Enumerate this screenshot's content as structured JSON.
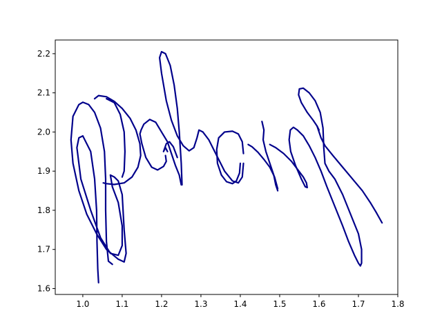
{
  "chart_data": {
    "type": "line",
    "title": "",
    "xlabel": "",
    "ylabel": "",
    "xlim": [
      0.93,
      1.8
    ],
    "ylim": [
      1.585,
      2.235
    ],
    "xticks": [
      1.0,
      1.1,
      1.2,
      1.3,
      1.4,
      1.5,
      1.6,
      1.7,
      1.8
    ],
    "xtick_labels": [
      "1.0",
      "1.1",
      "1.2",
      "1.3",
      "1.4",
      "1.5",
      "1.6",
      "1.7",
      "1.8"
    ],
    "yticks": [
      1.6,
      1.7,
      1.8,
      1.9,
      2.0,
      2.1,
      2.2
    ],
    "ytick_labels": [
      "1.6",
      "1.7",
      "1.8",
      "1.9",
      "2.0",
      "2.1",
      "2.2"
    ],
    "grid": false,
    "line_color": "#00008b",
    "series": [
      {
        "points": [
          [
            1.03,
            2.085
          ],
          [
            1.04,
            2.093
          ],
          [
            1.06,
            2.09
          ],
          [
            1.08,
            2.078
          ],
          [
            1.1,
            2.06
          ],
          [
            1.12,
            2.035
          ],
          [
            1.135,
            2.005
          ],
          [
            1.145,
            1.97
          ],
          [
            1.147,
            1.94
          ],
          [
            1.14,
            1.91
          ],
          [
            1.125,
            1.885
          ],
          [
            1.105,
            1.87
          ],
          [
            1.08,
            1.866
          ],
          [
            1.06,
            1.868
          ],
          [
            1.052,
            1.87
          ]
        ]
      },
      {
        "points": [
          [
            1.04,
            1.615
          ],
          [
            1.038,
            1.65
          ],
          [
            1.036,
            1.72
          ],
          [
            1.035,
            1.8
          ],
          [
            1.03,
            1.88
          ],
          [
            1.02,
            1.95
          ],
          [
            1.0,
            1.99
          ],
          [
            0.99,
            1.985
          ],
          [
            0.985,
            1.96
          ],
          [
            0.995,
            1.88
          ],
          [
            1.02,
            1.8
          ],
          [
            1.045,
            1.73
          ],
          [
            1.07,
            1.69
          ],
          [
            1.09,
            1.685
          ],
          [
            1.1,
            1.71
          ],
          [
            1.1,
            1.76
          ],
          [
            1.09,
            1.82
          ],
          [
            1.075,
            1.86
          ],
          [
            1.07,
            1.89
          ],
          [
            1.08,
            1.885
          ],
          [
            1.09,
            1.875
          ],
          [
            1.1,
            1.84
          ],
          [
            1.105,
            1.75
          ],
          [
            1.11,
            1.69
          ],
          [
            1.105,
            1.668
          ],
          [
            1.09,
            1.675
          ],
          [
            1.06,
            1.7
          ],
          [
            1.035,
            1.74
          ],
          [
            1.01,
            1.79
          ],
          [
            0.99,
            1.85
          ],
          [
            0.975,
            1.92
          ],
          [
            0.97,
            1.98
          ],
          [
            0.975,
            2.04
          ],
          [
            0.99,
            2.07
          ],
          [
            1.0,
            2.076
          ],
          [
            1.015,
            2.07
          ],
          [
            1.03,
            2.05
          ],
          [
            1.045,
            2.01
          ],
          [
            1.055,
            1.95
          ],
          [
            1.058,
            1.88
          ],
          [
            1.058,
            1.8
          ],
          [
            1.06,
            1.72
          ],
          [
            1.065,
            1.67
          ],
          [
            1.075,
            1.662
          ]
        ]
      },
      {
        "points": [
          [
            1.06,
            2.085
          ],
          [
            1.08,
            2.075
          ],
          [
            1.095,
            2.045
          ],
          [
            1.105,
            2.0
          ],
          [
            1.107,
            1.95
          ],
          [
            1.105,
            1.9
          ],
          [
            1.1,
            1.885
          ]
        ]
      },
      {
        "points": [
          [
            1.21,
            1.94
          ],
          [
            1.212,
            1.925
          ],
          [
            1.205,
            1.912
          ],
          [
            1.19,
            1.903
          ],
          [
            1.175,
            1.91
          ],
          [
            1.16,
            1.935
          ],
          [
            1.15,
            1.97
          ],
          [
            1.145,
            1.995
          ],
          [
            1.148,
            2.005
          ],
          [
            1.155,
            2.02
          ],
          [
            1.17,
            2.032
          ],
          [
            1.185,
            2.025
          ],
          [
            1.2,
            2.0
          ],
          [
            1.215,
            1.975
          ],
          [
            1.225,
            1.945
          ],
          [
            1.235,
            1.915
          ],
          [
            1.245,
            1.89
          ],
          [
            1.25,
            1.865
          ]
        ]
      },
      {
        "points": [
          [
            1.215,
            1.95
          ],
          [
            1.21,
            1.96
          ],
          [
            1.205,
            1.95
          ],
          [
            1.212,
            1.97
          ],
          [
            1.22,
            1.975
          ],
          [
            1.23,
            1.962
          ],
          [
            1.24,
            1.935
          ]
        ]
      },
      {
        "points": [
          [
            1.252,
            1.865
          ],
          [
            1.25,
            1.92
          ],
          [
            1.245,
            2.0
          ],
          [
            1.24,
            2.06
          ],
          [
            1.232,
            2.12
          ],
          [
            1.222,
            2.17
          ],
          [
            1.21,
            2.2
          ],
          [
            1.2,
            2.205
          ],
          [
            1.195,
            2.19
          ],
          [
            1.2,
            2.15
          ],
          [
            1.212,
            2.08
          ],
          [
            1.225,
            2.03
          ],
          [
            1.24,
            1.99
          ],
          [
            1.255,
            1.965
          ],
          [
            1.27,
            1.952
          ],
          [
            1.282,
            1.96
          ],
          [
            1.29,
            1.985
          ],
          [
            1.295,
            2.005
          ],
          [
            1.305,
            2.0
          ],
          [
            1.32,
            1.98
          ],
          [
            1.34,
            1.94
          ],
          [
            1.36,
            1.9
          ],
          [
            1.38,
            1.875
          ],
          [
            1.395,
            1.87
          ],
          [
            1.405,
            1.885
          ],
          [
            1.408,
            1.92
          ]
        ]
      },
      {
        "points": [
          [
            1.408,
            1.945
          ],
          [
            1.405,
            1.975
          ],
          [
            1.395,
            1.995
          ],
          [
            1.38,
            2.002
          ],
          [
            1.36,
            2.0
          ],
          [
            1.345,
            1.985
          ],
          [
            1.34,
            1.955
          ],
          [
            1.342,
            1.92
          ],
          [
            1.352,
            1.89
          ],
          [
            1.365,
            1.873
          ],
          [
            1.38,
            1.868
          ],
          [
            1.39,
            1.875
          ],
          [
            1.398,
            1.895
          ],
          [
            1.4,
            1.92
          ]
        ]
      },
      {
        "points": [
          [
            1.455,
            2.027
          ],
          [
            1.46,
            2.005
          ],
          [
            1.458,
            1.98
          ],
          [
            1.465,
            1.95
          ],
          [
            1.475,
            1.92
          ],
          [
            1.485,
            1.89
          ],
          [
            1.49,
            1.865
          ],
          [
            1.495,
            1.85
          ]
        ]
      },
      {
        "points": [
          [
            1.42,
            1.968
          ],
          [
            1.43,
            1.962
          ],
          [
            1.445,
            1.948
          ],
          [
            1.46,
            1.93
          ],
          [
            1.475,
            1.91
          ],
          [
            1.487,
            1.885
          ],
          [
            1.495,
            1.855
          ]
        ]
      },
      {
        "points": [
          [
            1.475,
            1.968
          ],
          [
            1.49,
            1.96
          ],
          [
            1.51,
            1.945
          ],
          [
            1.53,
            1.925
          ],
          [
            1.545,
            1.905
          ],
          [
            1.56,
            1.885
          ],
          [
            1.568,
            1.87
          ],
          [
            1.57,
            1.858
          ],
          [
            1.565,
            1.86
          ],
          [
            1.555,
            1.88
          ],
          [
            1.54,
            1.915
          ],
          [
            1.528,
            1.95
          ],
          [
            1.524,
            1.98
          ],
          [
            1.527,
            2.005
          ],
          [
            1.535,
            2.012
          ],
          [
            1.545,
            2.005
          ],
          [
            1.56,
            1.99
          ],
          [
            1.575,
            1.965
          ],
          [
            1.59,
            1.935
          ],
          [
            1.605,
            1.9
          ],
          [
            1.62,
            1.86
          ],
          [
            1.64,
            1.81
          ],
          [
            1.66,
            1.76
          ],
          [
            1.675,
            1.72
          ],
          [
            1.69,
            1.685
          ],
          [
            1.7,
            1.665
          ],
          [
            1.705,
            1.658
          ],
          [
            1.708,
            1.665
          ],
          [
            1.708,
            1.7
          ],
          [
            1.7,
            1.74
          ],
          [
            1.68,
            1.79
          ],
          [
            1.66,
            1.84
          ],
          [
            1.64,
            1.88
          ],
          [
            1.625,
            1.9
          ],
          [
            1.615,
            1.92
          ],
          [
            1.612,
            1.96
          ],
          [
            1.61,
            2.01
          ],
          [
            1.603,
            2.05
          ],
          [
            1.59,
            2.08
          ],
          [
            1.575,
            2.1
          ],
          [
            1.56,
            2.112
          ],
          [
            1.55,
            2.11
          ],
          [
            1.548,
            2.095
          ],
          [
            1.555,
            2.075
          ],
          [
            1.57,
            2.05
          ],
          [
            1.585,
            2.03
          ],
          [
            1.595,
            2.015
          ],
          [
            1.6,
            2.005
          ]
        ]
      },
      {
        "points": [
          [
            1.595,
            2.015
          ],
          [
            1.6,
            2.0
          ],
          [
            1.605,
            1.985
          ],
          [
            1.615,
            1.965
          ],
          [
            1.635,
            1.94
          ],
          [
            1.66,
            1.91
          ],
          [
            1.685,
            1.88
          ],
          [
            1.71,
            1.85
          ],
          [
            1.73,
            1.82
          ],
          [
            1.745,
            1.795
          ],
          [
            1.76,
            1.768
          ]
        ]
      }
    ]
  }
}
